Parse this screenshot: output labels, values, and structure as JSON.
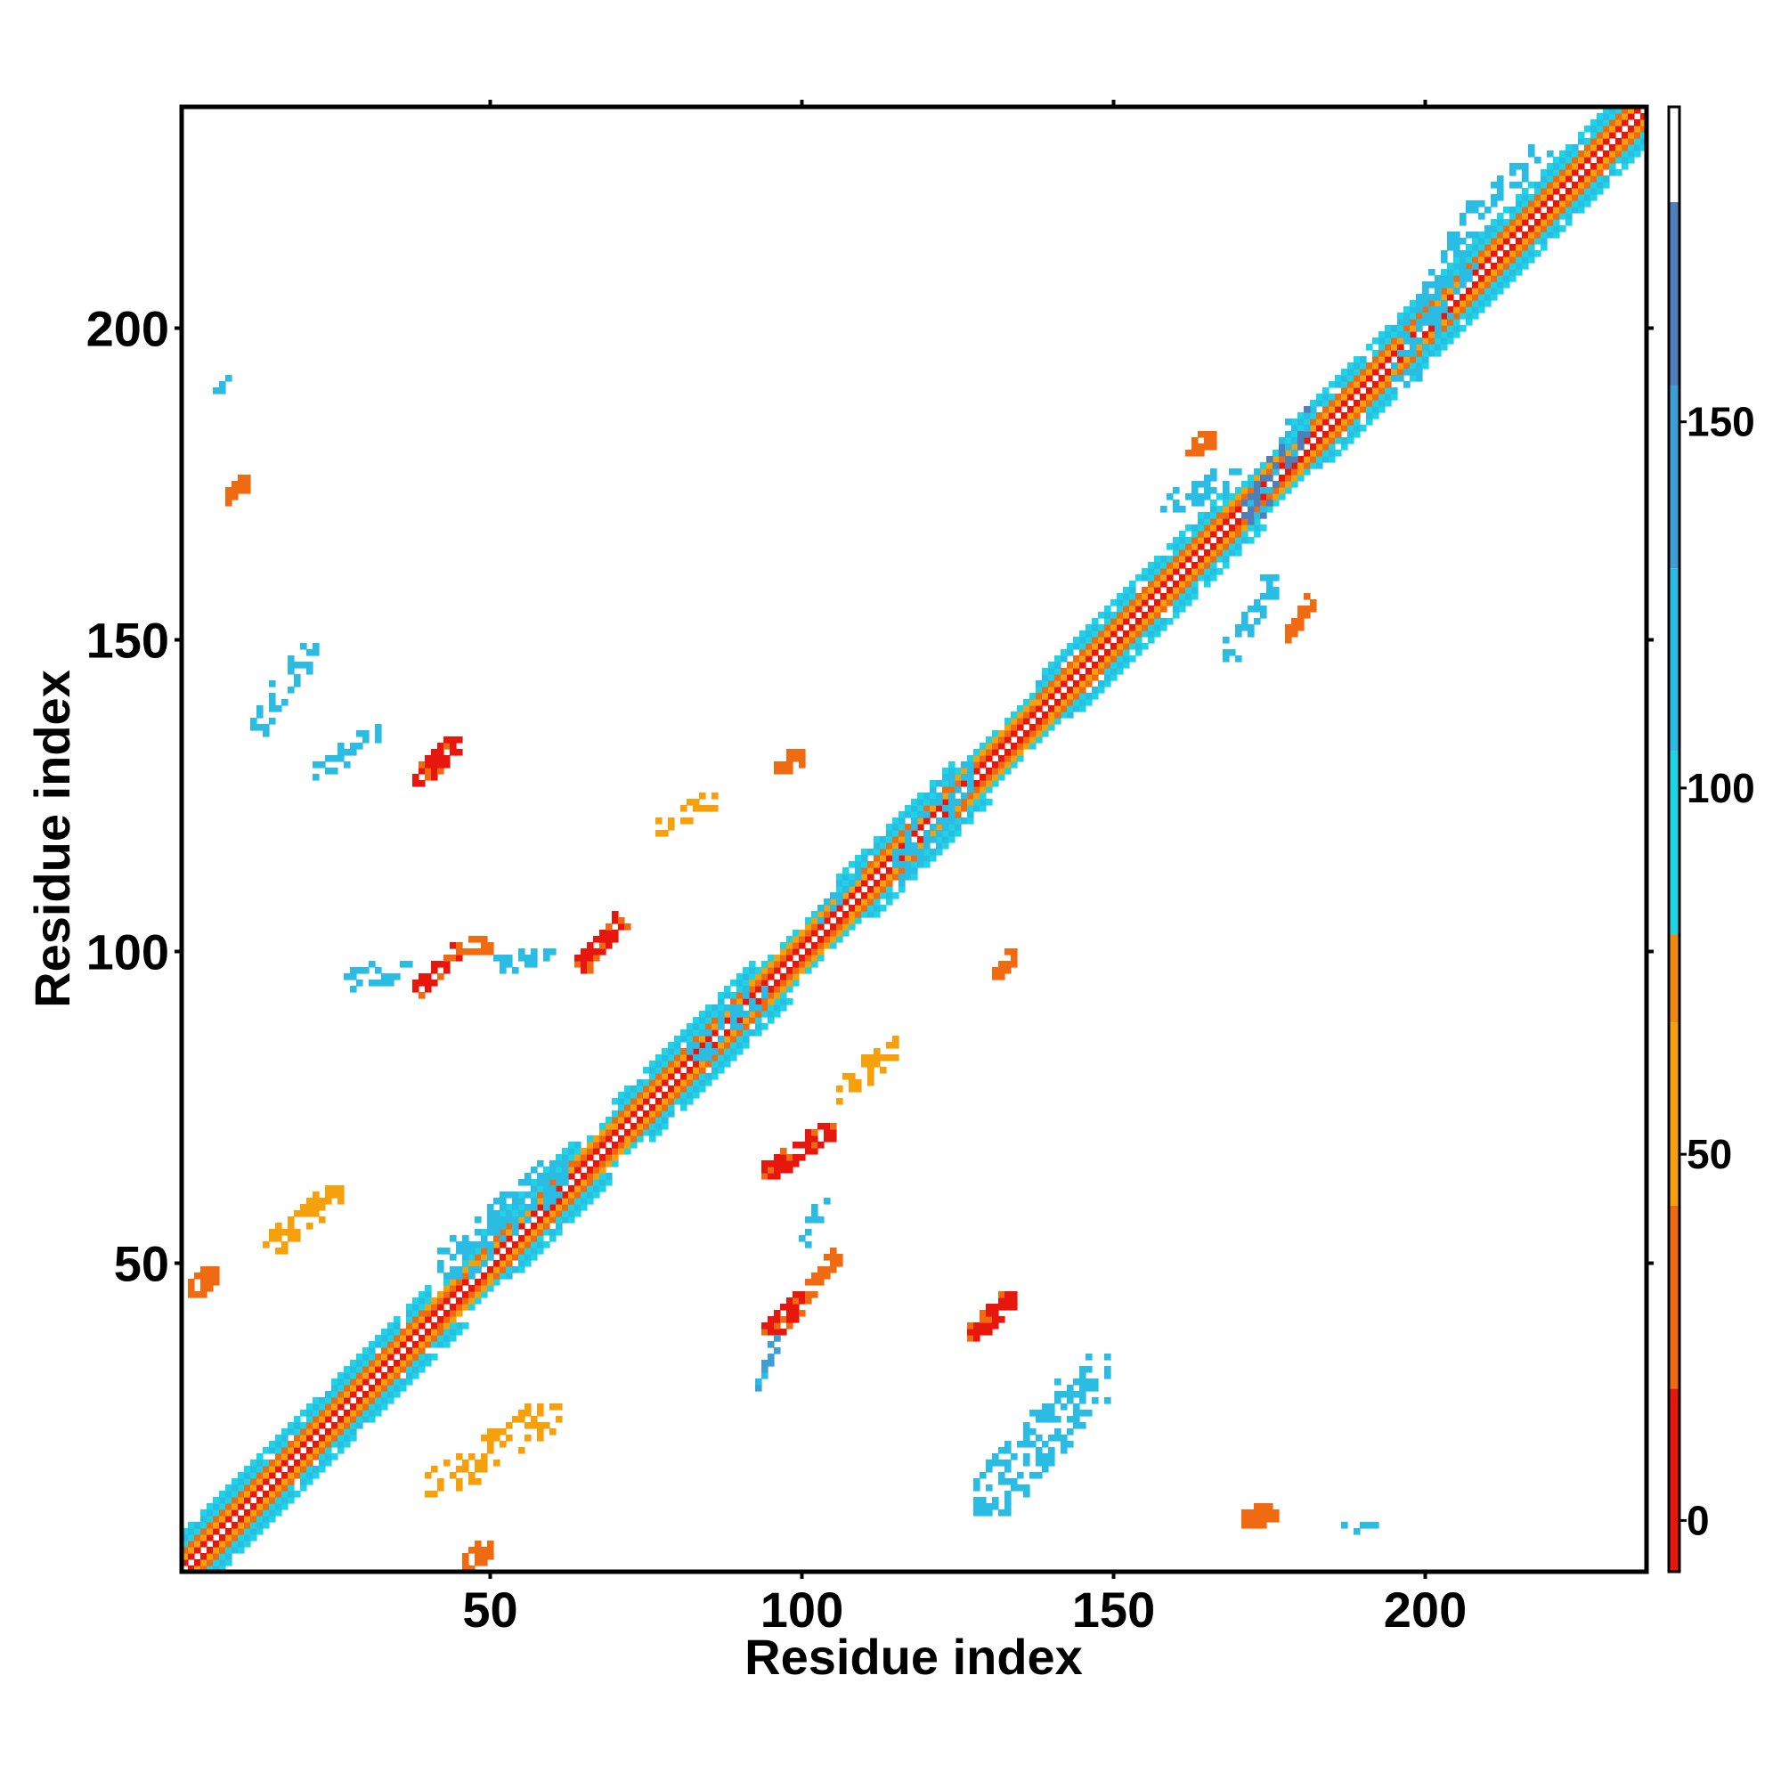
{
  "chart_data": {
    "type": "heatmap",
    "title": "",
    "xlabel": "Residue index",
    "ylabel": "Residue index",
    "xlim": [
      1,
      235
    ],
    "ylim": [
      1,
      235
    ],
    "x_ticks": [
      50,
      100,
      150,
      200
    ],
    "y_ticks": [
      50,
      100,
      150,
      200
    ],
    "colorbar": {
      "range": [
        -7,
        193
      ],
      "ticks": [
        0,
        50,
        100,
        150
      ],
      "bands": [
        {
          "from": -7,
          "to": 18,
          "color": "#e8170d"
        },
        {
          "from": 18,
          "to": 43,
          "color": "#f06a12"
        },
        {
          "from": 43,
          "to": 68,
          "color": "#f6a00c"
        },
        {
          "from": 68,
          "to": 80,
          "color": "#ef8a10"
        },
        {
          "from": 80,
          "to": 105,
          "color": "#1fd3e6"
        },
        {
          "from": 105,
          "to": 130,
          "color": "#2bbce3"
        },
        {
          "from": 130,
          "to": 155,
          "color": "#3e9fd4"
        },
        {
          "from": 155,
          "to": 180,
          "color": "#4f7fb8"
        },
        {
          "from": 180,
          "to": 193,
          "color": "#ffffff"
        }
      ]
    },
    "cell_colors": {
      "red": "#e8170d",
      "red_orange": "#f06a12",
      "orange": "#f6a00c",
      "cyan": "#1fd3e6",
      "sky": "#2bbce3",
      "steel": "#4f7fb8"
    },
    "diagonal_band": {
      "from": 1,
      "to": 235
    },
    "diagonal_segments": [
      {
        "from": 1,
        "to": 40,
        "style": "strand"
      },
      {
        "from": 40,
        "to": 48,
        "style": "helix"
      },
      {
        "from": 48,
        "to": 64,
        "style": "strand"
      },
      {
        "from": 64,
        "to": 70,
        "style": "helix"
      },
      {
        "from": 70,
        "to": 92,
        "style": "strand"
      },
      {
        "from": 92,
        "to": 106,
        "style": "helix"
      },
      {
        "from": 106,
        "to": 124,
        "style": "strand"
      },
      {
        "from": 124,
        "to": 138,
        "style": "helix"
      },
      {
        "from": 138,
        "to": 168,
        "style": "strand"
      },
      {
        "from": 168,
        "to": 178,
        "style": "helix"
      },
      {
        "from": 178,
        "to": 235,
        "style": "strand"
      }
    ],
    "contacts": [
      {
        "x": [
          38,
          45
        ],
        "y": [
          93,
          101
        ],
        "value": 5
      },
      {
        "x": [
          45,
          50
        ],
        "y": [
          100,
          102
        ],
        "value": 40
      },
      {
        "x": [
          51,
          60
        ],
        "y": [
          97,
          101
        ],
        "value": 110
      },
      {
        "x": [
          25,
          37
        ],
        "y": [
          94,
          98
        ],
        "value": 120
      },
      {
        "x": [
          38,
          45
        ],
        "y": [
          127,
          134
        ],
        "value": 8
      },
      {
        "x": [
          64,
          72
        ],
        "y": [
          97,
          106
        ],
        "value": 10
      },
      {
        "x": [
          94,
          101
        ],
        "y": [
          38,
          45
        ],
        "value": 5
      },
      {
        "x": [
          101,
          106
        ],
        "y": [
          45,
          52
        ],
        "value": 30
      },
      {
        "x": [
          100,
          104
        ],
        "y": [
          52,
          62
        ],
        "value": 110
      },
      {
        "x": [
          94,
          105
        ],
        "y": [
          64,
          72
        ],
        "value": 10
      },
      {
        "x": [
          93,
          96
        ],
        "y": [
          30,
          38
        ],
        "value": 140
      },
      {
        "x": [
          127,
          134
        ],
        "y": [
          38,
          45
        ],
        "value": 8
      },
      {
        "x": [
          128,
          150
        ],
        "y": [
          10,
          35
        ],
        "value": 110
      },
      {
        "x": [
          12,
          22
        ],
        "y": [
          135,
          150
        ],
        "value": 110
      },
      {
        "x": [
          22,
          32
        ],
        "y": [
          128,
          136
        ],
        "value": 110
      },
      {
        "x": [
          14,
          26
        ],
        "y": [
          52,
          62
        ],
        "value": 50
      },
      {
        "x": [
          40,
          61
        ],
        "y": [
          13,
          27
        ],
        "value": 55
      },
      {
        "x": [
          105,
          116
        ],
        "y": [
          76,
          86
        ],
        "value": 50
      },
      {
        "x": [
          77,
          86
        ],
        "y": [
          119,
          125
        ],
        "value": 50
      },
      {
        "x": [
          171,
          181
        ],
        "y": [
          169,
          187
        ],
        "value": 160
      },
      {
        "x": [
          158,
          170
        ],
        "y": [
          171,
          177
        ],
        "value": 115
      },
      {
        "x": [
          168,
          176
        ],
        "y": [
          147,
          160
        ],
        "value": 120
      },
      {
        "x": [
          178,
          182
        ],
        "y": [
          150,
          157
        ],
        "value": 25
      },
      {
        "x": [
          195,
          210
        ],
        "y": [
          191,
          220
        ],
        "value": 110
      },
      {
        "x": [
          210,
          220
        ],
        "y": [
          220,
          230
        ],
        "value": 110
      },
      {
        "x": [
          103,
          110
        ],
        "y": [
          105,
          115
        ],
        "value": 115
      },
      {
        "x": [
          115,
          127
        ],
        "y": [
          112,
          130
        ],
        "value": 110
      },
      {
        "x": [
          82,
          94
        ],
        "y": [
          83,
          94
        ],
        "value": 110
      },
      {
        "x": [
          42,
          62
        ],
        "y": [
          48,
          66
        ],
        "value": 110
      },
      {
        "x": [
          2,
          6
        ],
        "y": [
          45,
          49
        ],
        "value": 20
      },
      {
        "x": [
          8,
          11
        ],
        "y": [
          172,
          176
        ],
        "value": 20
      },
      {
        "x": [
          171,
          176
        ],
        "y": [
          8,
          11
        ],
        "value": 20
      },
      {
        "x": [
          46,
          50
        ],
        "y": [
          1,
          5
        ],
        "value": 20
      },
      {
        "x": [
          6,
          8
        ],
        "y": [
          190,
          192
        ],
        "value": 120
      },
      {
        "x": [
          187,
          192
        ],
        "y": [
          6,
          8
        ],
        "value": 120
      },
      {
        "x": [
          131,
          134
        ],
        "y": [
          96,
          100
        ],
        "value": 30
      },
      {
        "x": [
          96,
          100
        ],
        "y": [
          129,
          132
        ],
        "value": 30
      },
      {
        "x": [
          162,
          166
        ],
        "y": [
          180,
          183
        ],
        "value": 30
      }
    ]
  }
}
